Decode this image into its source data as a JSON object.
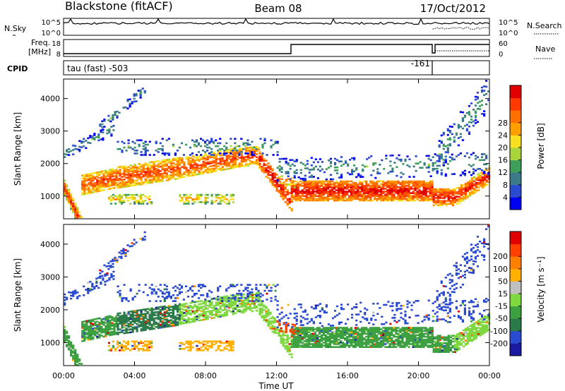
{
  "header": {
    "station": "Blackstone (fitACF)",
    "beam": "Beam 08",
    "date": "17/Oct/2012"
  },
  "panels": {
    "nsky_label": "N.Sky",
    "nsearch_label": "N.Search",
    "nsky_ticks": [
      "10^5",
      "10^0"
    ],
    "nsearch_ticks": [
      "10^5",
      "10^0"
    ],
    "freq_label_1": "Freq.",
    "freq_label_2": "[MHz]",
    "freq_ticks": [
      "18",
      "8"
    ],
    "nave_label": "Nave",
    "nave_ticks": [
      "60",
      "0"
    ],
    "cpid_label": "CPID",
    "cpid_text_1": "tau (fast) -503",
    "cpid_text_2": "-161"
  },
  "chart_data": [
    {
      "type": "heatmap",
      "name": "power",
      "xlabel": "Time UT",
      "ylabel": "Slant Range [km]",
      "x_ticks": [
        "00:00",
        "04:00",
        "08:00",
        "12:00",
        "16:00",
        "20:00",
        "00:00"
      ],
      "y_ticks": [
        1000,
        2000,
        3000,
        4000
      ],
      "ylim": [
        300,
        4600
      ],
      "colorbar_label": "Power [dB]",
      "colorbar_ticks": [
        4,
        8,
        12,
        16,
        20,
        24,
        28
      ],
      "colors": [
        "#0000ee",
        "#2a4ad0",
        "#3c7a8a",
        "#3e9e5a",
        "#a8d43c",
        "#f7e020",
        "#ffa000",
        "#ff7000",
        "#ff3a00",
        "#e00000"
      ]
    },
    {
      "type": "heatmap",
      "name": "velocity",
      "xlabel": "Time UT",
      "ylabel": "Slant Range [km]",
      "x_ticks": [
        "00:00",
        "04:00",
        "08:00",
        "12:00",
        "16:00",
        "20:00",
        "00:00"
      ],
      "y_ticks": [
        1000,
        2000,
        3000,
        4000
      ],
      "ylim": [
        300,
        4600
      ],
      "colorbar_label": "Velocity [m s⁻¹]",
      "colorbar_ticks": [
        200,
        100,
        50,
        15,
        -15,
        -50,
        -100,
        -200
      ],
      "colors": [
        "#1a1aa0",
        "#2a4ad0",
        "#2a7a4a",
        "#3ca040",
        "#7fd840",
        "#bfbfbf",
        "#ffb000",
        "#ff8000",
        "#ff4000",
        "#e00000"
      ]
    }
  ]
}
